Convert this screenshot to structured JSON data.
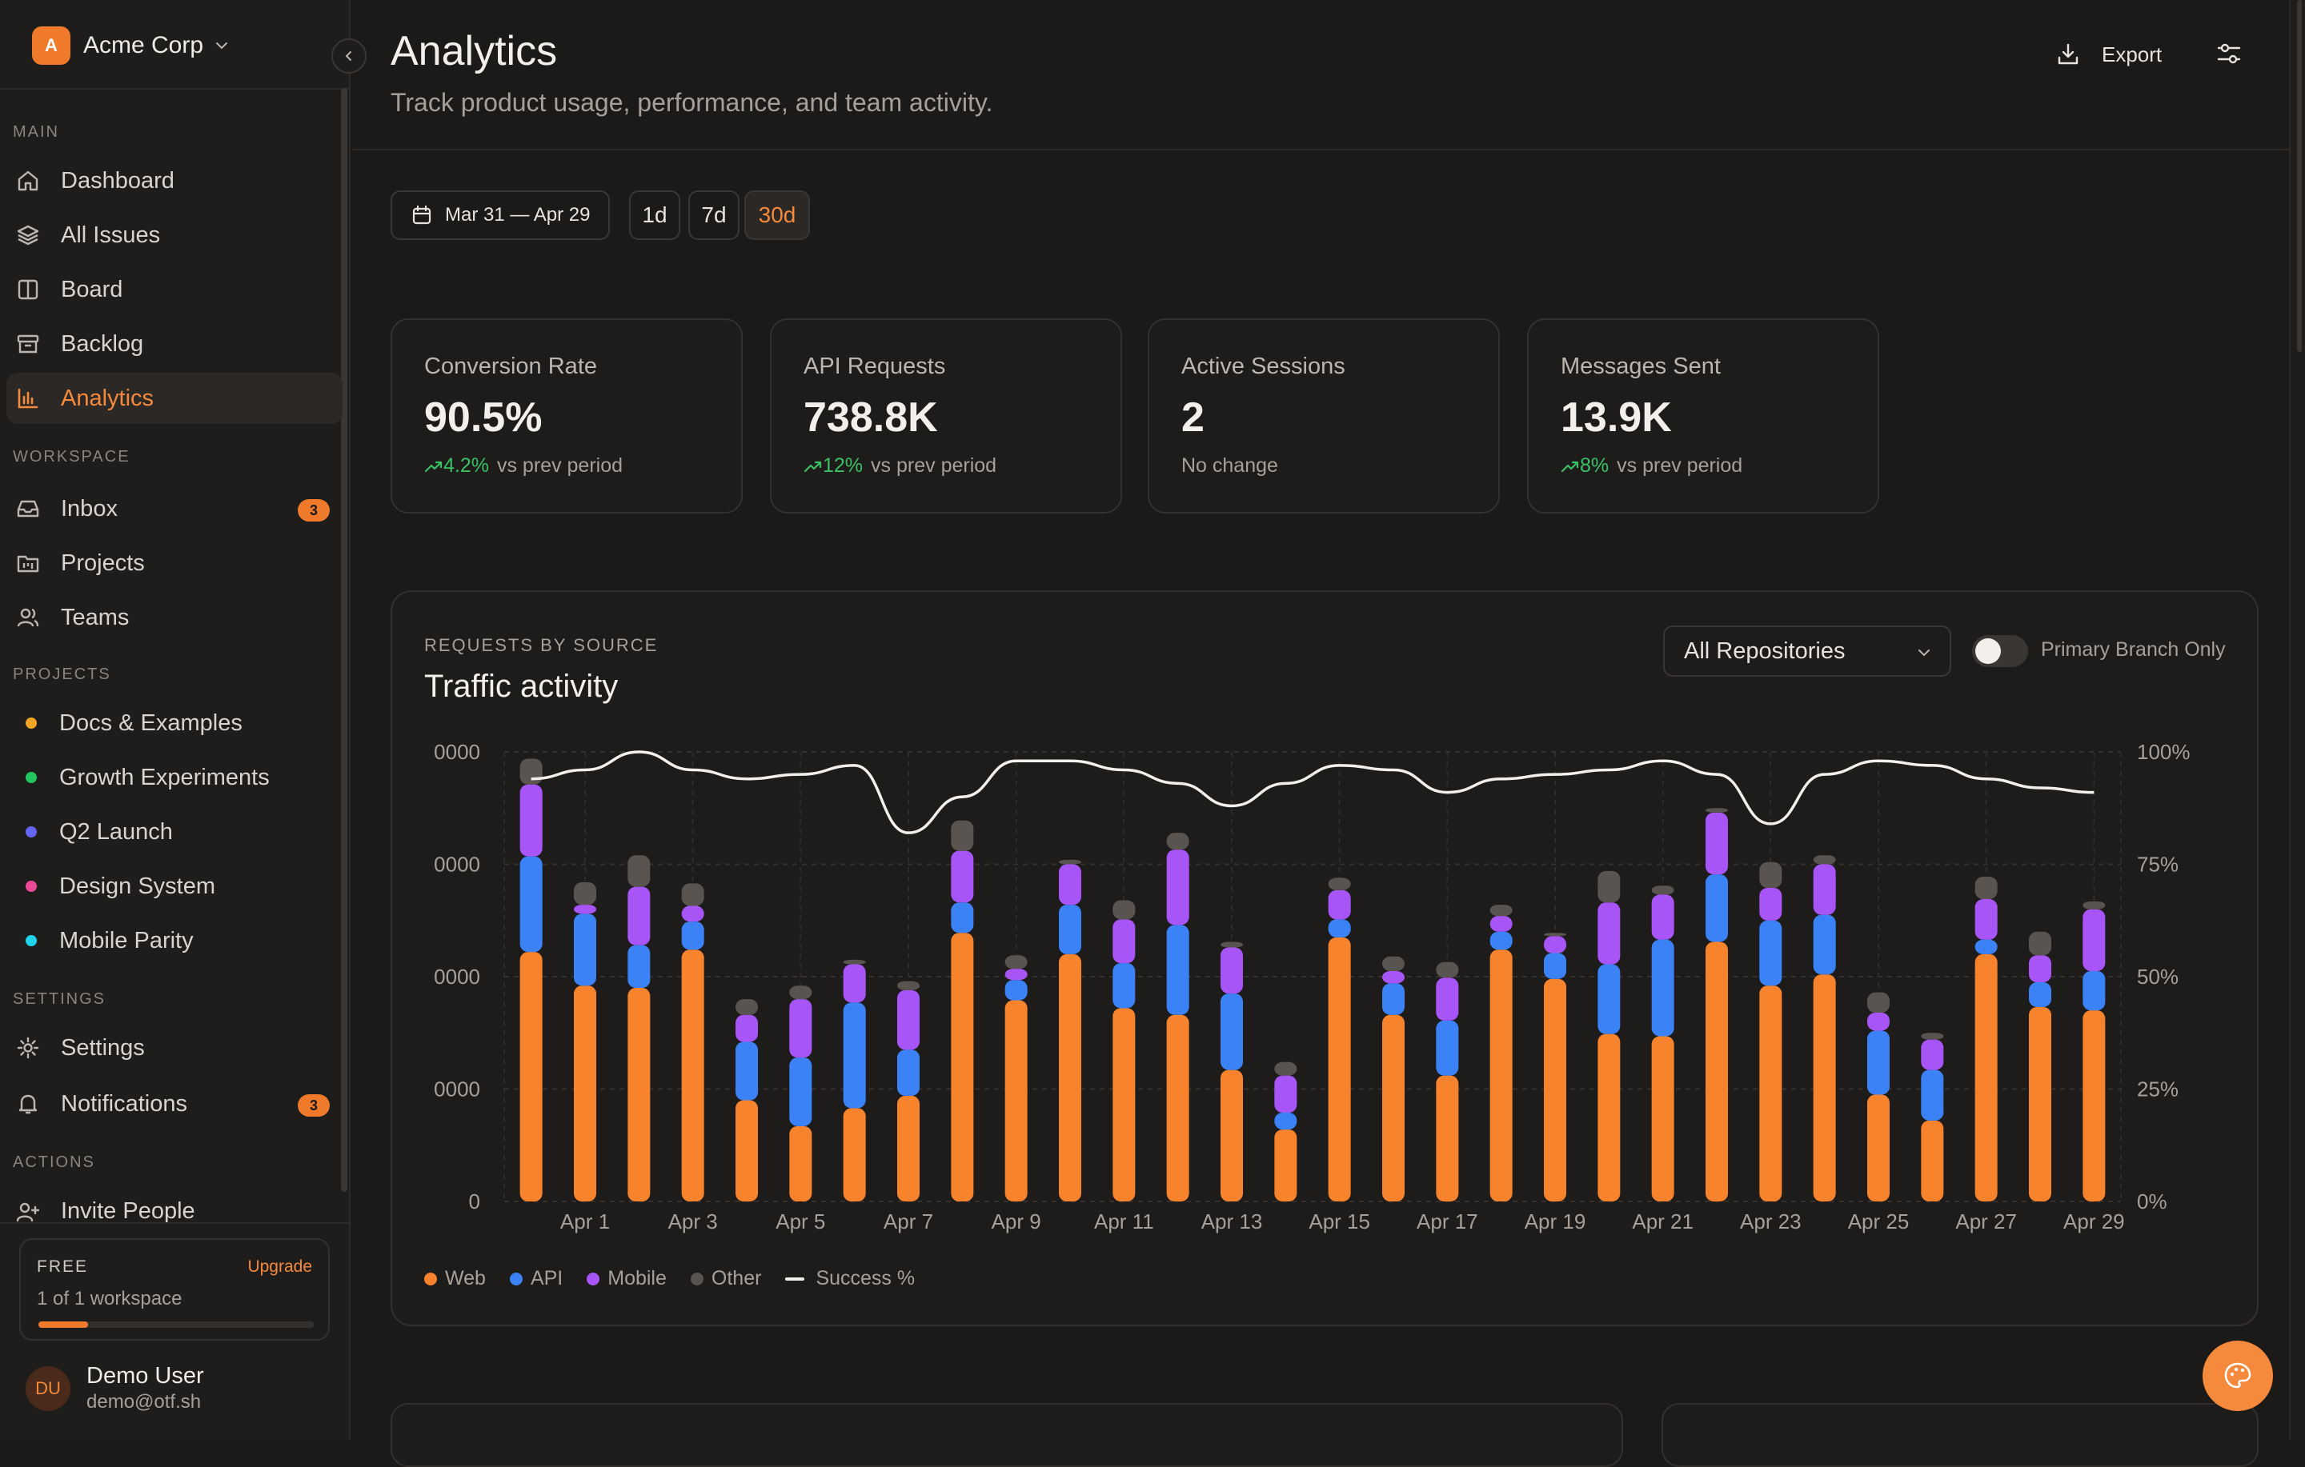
{
  "org": {
    "initial": "A",
    "name": "Acme Corp"
  },
  "sidebar": {
    "sections": {
      "main": "MAIN",
      "workspace": "WORKSPACE",
      "projects": "PROJECTS",
      "settings": "SETTINGS",
      "actions": "ACTIONS"
    },
    "main_items": [
      {
        "label": "Dashboard",
        "icon": "home-icon"
      },
      {
        "label": "All Issues",
        "icon": "layers-icon"
      },
      {
        "label": "Board",
        "icon": "columns-icon"
      },
      {
        "label": "Backlog",
        "icon": "archive-icon"
      },
      {
        "label": "Analytics",
        "icon": "bar-chart-icon",
        "active": true
      }
    ],
    "workspace_items": [
      {
        "label": "Inbox",
        "icon": "inbox-icon",
        "badge": "3"
      },
      {
        "label": "Projects",
        "icon": "project-icon"
      },
      {
        "label": "Teams",
        "icon": "users-icon"
      }
    ],
    "projects": [
      {
        "label": "Docs & Examples",
        "color": "#f5a524"
      },
      {
        "label": "Growth Experiments",
        "color": "#22c55e"
      },
      {
        "label": "Q2 Launch",
        "color": "#6366f1"
      },
      {
        "label": "Design System",
        "color": "#ec4899"
      },
      {
        "label": "Mobile Parity",
        "color": "#22d3ee"
      }
    ],
    "settings_items": [
      {
        "label": "Settings",
        "icon": "gear-icon"
      },
      {
        "label": "Notifications",
        "icon": "bell-icon",
        "badge": "3"
      }
    ],
    "actions_items": [
      {
        "label": "Invite People",
        "icon": "user-plus-icon"
      }
    ]
  },
  "plan": {
    "tier": "FREE",
    "upgrade": "Upgrade",
    "usage": "1 of 1 workspace",
    "usage_fraction": 0.18
  },
  "user": {
    "initials": "DU",
    "name": "Demo User",
    "email": "demo@otf.sh"
  },
  "header": {
    "title": "Analytics",
    "subtitle": "Track product usage, performance, and team activity.",
    "export": "Export"
  },
  "range": {
    "date_label": "Mar 31 — Apr 29",
    "options": [
      "1d",
      "7d",
      "30d"
    ],
    "selected": "30d"
  },
  "stats": [
    {
      "label": "Conversion Rate",
      "value": "90.5%",
      "trend": "4.2%",
      "trend_note": "vs prev period"
    },
    {
      "label": "API Requests",
      "value": "738.8K",
      "trend": "12%",
      "trend_note": "vs prev period"
    },
    {
      "label": "Active Sessions",
      "value": "2",
      "trend": "",
      "trend_note": "No change"
    },
    {
      "label": "Messages Sent",
      "value": "13.9K",
      "trend": "8%",
      "trend_note": "vs prev period"
    }
  ],
  "chart_panel": {
    "kicker": "REQUESTS BY SOURCE",
    "title": "Traffic activity",
    "repo_select": "All Repositories",
    "toggle_label": "Primary Branch Only",
    "toggle_on": false
  },
  "colors": {
    "web": "#f7842d",
    "api": "#3b82f6",
    "mobile": "#a855f7",
    "other": "#5a5450",
    "accent": "#f58a3c"
  },
  "chart_data": {
    "type": "bar",
    "stacked": true,
    "y_left_ticks": [
      "0",
      "0000",
      "0000",
      "0000",
      "0000"
    ],
    "y_right_ticks": [
      "0%",
      "25%",
      "50%",
      "75%",
      "100%"
    ],
    "y_left_range": [
      0,
      4
    ],
    "y_right_range": [
      0,
      100
    ],
    "x_tick_labels": [
      "Apr 1",
      "Apr 3",
      "Apr 5",
      "Apr 7",
      "Apr 9",
      "Apr 11",
      "Apr 13",
      "Apr 15",
      "Apr 17",
      "Apr 19",
      "Apr 21",
      "Apr 23",
      "Apr 25",
      "Apr 27",
      "Apr 29"
    ],
    "categories": [
      "Mar 31",
      "Apr 1",
      "Apr 2",
      "Apr 3",
      "Apr 4",
      "Apr 5",
      "Apr 6",
      "Apr 7",
      "Apr 8",
      "Apr 9",
      "Apr 10",
      "Apr 11",
      "Apr 12",
      "Apr 13",
      "Apr 14",
      "Apr 15",
      "Apr 16",
      "Apr 17",
      "Apr 18",
      "Apr 19",
      "Apr 20",
      "Apr 21",
      "Apr 22",
      "Apr 23",
      "Apr 24",
      "Apr 25",
      "Apr 26",
      "Apr 27",
      "Apr 28",
      "Apr 29"
    ],
    "series": [
      {
        "name": "Web",
        "values": [
          2.22,
          1.92,
          1.9,
          2.24,
          0.9,
          0.67,
          0.83,
          0.94,
          2.39,
          1.79,
          2.2,
          1.72,
          1.66,
          1.17,
          0.64,
          2.35,
          1.66,
          1.12,
          2.24,
          1.98,
          1.49,
          1.47,
          2.31,
          1.92,
          2.02,
          0.95,
          0.72,
          2.2,
          1.73,
          1.7
        ]
      },
      {
        "name": "API",
        "values": [
          0.85,
          0.64,
          0.38,
          0.25,
          0.52,
          0.61,
          0.94,
          0.41,
          0.27,
          0.18,
          0.44,
          0.4,
          0.8,
          0.68,
          0.15,
          0.16,
          0.28,
          0.49,
          0.16,
          0.23,
          0.62,
          0.86,
          0.6,
          0.58,
          0.53,
          0.57,
          0.45,
          0.13,
          0.22,
          0.35
        ]
      },
      {
        "name": "Mobile",
        "values": [
          0.64,
          0.08,
          0.52,
          0.14,
          0.24,
          0.52,
          0.34,
          0.53,
          0.46,
          0.1,
          0.36,
          0.39,
          0.67,
          0.41,
          0.33,
          0.26,
          0.11,
          0.38,
          0.14,
          0.15,
          0.55,
          0.4,
          0.55,
          0.29,
          0.45,
          0.16,
          0.27,
          0.36,
          0.24,
          0.55
        ]
      },
      {
        "name": "Other",
        "values": [
          0.23,
          0.2,
          0.28,
          0.2,
          0.14,
          0.12,
          0.04,
          0.08,
          0.27,
          0.12,
          0.04,
          0.17,
          0.15,
          0.05,
          0.12,
          0.11,
          0.13,
          0.14,
          0.1,
          0.03,
          0.28,
          0.08,
          0.04,
          0.23,
          0.08,
          0.18,
          0.06,
          0.2,
          0.21,
          0.07
        ]
      },
      {
        "name": "Success %",
        "axis": "right",
        "values": [
          94,
          96,
          100,
          96,
          94,
          95,
          97,
          82,
          90,
          98,
          98,
          96,
          93,
          88,
          93,
          97,
          96,
          91,
          94,
          95,
          96,
          98,
          95,
          84,
          95,
          98,
          97,
          94,
          92,
          91
        ]
      }
    ],
    "grid": true,
    "legend": "bottom-left"
  },
  "fab_icon": "palette-icon"
}
